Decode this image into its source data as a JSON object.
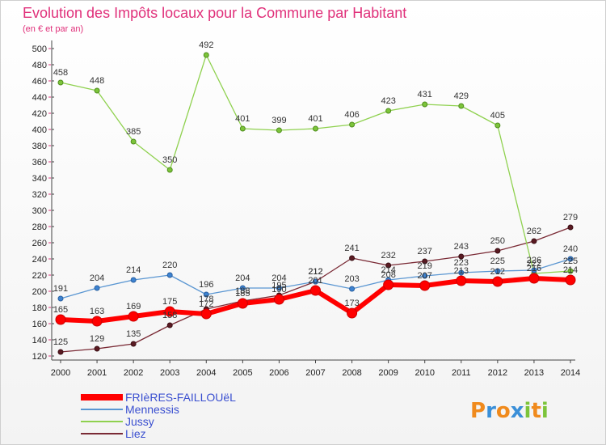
{
  "chart_data": {
    "type": "line",
    "title": "Evolution des Impôts locaux pour la Commune par Habitant",
    "subtitle": "(en € et par an)",
    "x": [
      "2000",
      "2001",
      "2002",
      "2003",
      "2004",
      "2005",
      "2006",
      "2007",
      "2008",
      "2009",
      "2010",
      "2011",
      "2012",
      "2013",
      "2014"
    ],
    "ylim": [
      120,
      500
    ],
    "yticks": [
      120,
      140,
      160,
      180,
      200,
      220,
      240,
      260,
      280,
      300,
      320,
      340,
      360,
      380,
      400,
      420,
      440,
      460,
      480,
      500
    ],
    "grid": false,
    "legend_position": "bottom-left",
    "series": [
      {
        "name": "FRIèRES-FAILLOUëL",
        "color": "#ff0000",
        "values": [
          165,
          163,
          169,
          175,
          172,
          185,
          190,
          201,
          173,
          208,
          207,
          213,
          212,
          216,
          214
        ],
        "labels": [
          "165",
          "163",
          "169",
          "175",
          "172",
          "185",
          "190",
          "201",
          "173",
          "208",
          "207",
          "213",
          "212",
          "216",
          "214"
        ]
      },
      {
        "name": "Mennessis",
        "color": "#5a96d2",
        "values": [
          191,
          204,
          214,
          220,
          196,
          204,
          204,
          212,
          203,
          214,
          219,
          223,
          225,
          226,
          240
        ],
        "labels": [
          "191",
          "204",
          "214",
          "220",
          "196",
          "204",
          "204",
          "212",
          "203",
          "214",
          "219",
          "223",
          "225",
          "226",
          "240"
        ]
      },
      {
        "name": "Jussy",
        "color": "#8fd14f",
        "values": [
          458,
          448,
          385,
          350,
          492,
          401,
          399,
          401,
          406,
          423,
          431,
          429,
          405,
          222,
          225
        ],
        "labels": [
          "458",
          "448",
          "385",
          "350",
          "492",
          "401",
          "399",
          "401",
          "406",
          "423",
          "431",
          "429",
          "405",
          "222",
          "225"
        ]
      },
      {
        "name": "Liez",
        "color": "#7a2a35",
        "values": [
          125,
          129,
          135,
          158,
          178,
          188,
          195,
          212,
          241,
          232,
          237,
          243,
          250,
          262,
          279
        ],
        "labels": [
          "125",
          "129",
          "135",
          "158",
          "178",
          "188",
          "195",
          "212",
          "241",
          "232",
          "237",
          "243",
          "250",
          "262",
          "279"
        ]
      }
    ]
  },
  "branding": {
    "logo_text": "Proxiti"
  }
}
